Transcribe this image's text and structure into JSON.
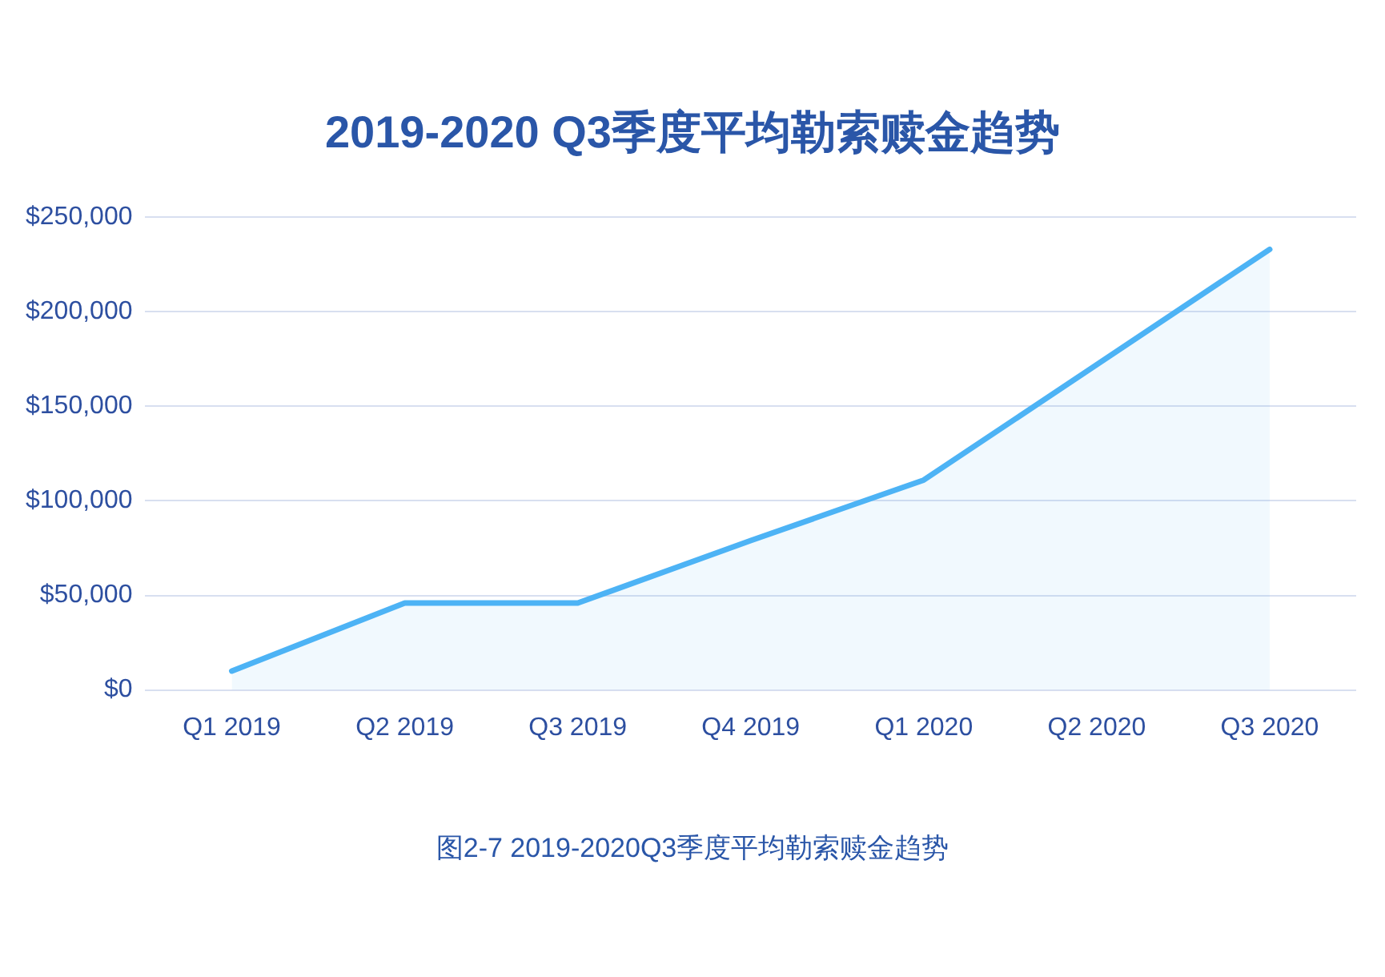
{
  "chart_data": {
    "type": "area",
    "title": "2019-2020 Q3季度平均勒索赎金趋势",
    "categories": [
      "Q1 2019",
      "Q2 2019",
      "Q3 2019",
      "Q4 2019",
      "Q1 2020",
      "Q2 2020",
      "Q3 2020"
    ],
    "series": [
      {
        "color": "#4db3f5",
        "values": [
          10000,
          46000,
          46000,
          79000,
          111000,
          172000,
          233000
        ]
      }
    ],
    "ylim": [
      0,
      250000
    ],
    "yticks": [
      {
        "value": 0,
        "label": "$0"
      },
      {
        "value": 50000,
        "label": "$50,000"
      },
      {
        "value": 100000,
        "label": "$100,000"
      },
      {
        "value": 150000,
        "label": "$150,000"
      },
      {
        "value": 200000,
        "label": "$200,000"
      },
      {
        "value": 250000,
        "label": "$250,000"
      }
    ],
    "grid": "y",
    "legend": false,
    "marker": "none",
    "line_style": "solid",
    "annotations": [
      "图2-7 2019-2020Q3季度平均勒索赎金趋势"
    ]
  }
}
